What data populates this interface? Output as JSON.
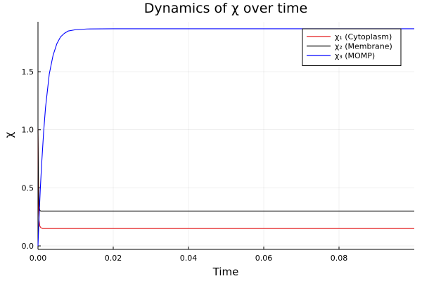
{
  "chart_data": {
    "type": "line",
    "title": "Dynamics of χ over time",
    "xlabel": "Time",
    "ylabel": "χ",
    "xlim": [
      0,
      0.1
    ],
    "ylim": [
      -0.03,
      1.93
    ],
    "xticks": [
      0.0,
      0.02,
      0.04,
      0.06,
      0.08
    ],
    "xtick_labels": [
      "0.00",
      "0.02",
      "0.04",
      "0.06",
      "0.08"
    ],
    "yticks": [
      0.0,
      0.5,
      1.0,
      1.5
    ],
    "ytick_labels": [
      "0.0",
      "0.5",
      "1.0",
      "1.5"
    ],
    "grid": true,
    "legend_position": "top-right",
    "series": [
      {
        "name": "χ₁ (Cytoplasm)",
        "color": "#e41a1c",
        "points": [
          [
            0,
            1.0
          ],
          [
            0.0001,
            0.55
          ],
          [
            0.0002,
            0.32
          ],
          [
            0.0003,
            0.22
          ],
          [
            0.0005,
            0.17
          ],
          [
            0.0008,
            0.155
          ],
          [
            0.0012,
            0.15
          ],
          [
            0.002,
            0.15
          ],
          [
            0.1,
            0.15
          ]
        ]
      },
      {
        "name": "χ₂ (Membrane)",
        "color": "#000000",
        "points": [
          [
            0,
            1.0
          ],
          [
            0.0001,
            0.62
          ],
          [
            0.0002,
            0.42
          ],
          [
            0.0003,
            0.34
          ],
          [
            0.0005,
            0.305
          ],
          [
            0.0008,
            0.3
          ],
          [
            0.002,
            0.3
          ],
          [
            0.1,
            0.3
          ]
        ]
      },
      {
        "name": "χ₃ (MOMP)",
        "color": "#0000ff",
        "points": [
          [
            0,
            0.0
          ],
          [
            0.0003,
            0.25
          ],
          [
            0.0006,
            0.48
          ],
          [
            0.001,
            0.72
          ],
          [
            0.0015,
            0.98
          ],
          [
            0.002,
            1.19
          ],
          [
            0.003,
            1.48
          ],
          [
            0.004,
            1.64
          ],
          [
            0.005,
            1.74
          ],
          [
            0.006,
            1.8
          ],
          [
            0.007,
            1.83
          ],
          [
            0.008,
            1.85
          ],
          [
            0.01,
            1.862
          ],
          [
            0.013,
            1.868
          ],
          [
            0.02,
            1.87
          ],
          [
            0.1,
            1.87
          ]
        ]
      }
    ]
  }
}
